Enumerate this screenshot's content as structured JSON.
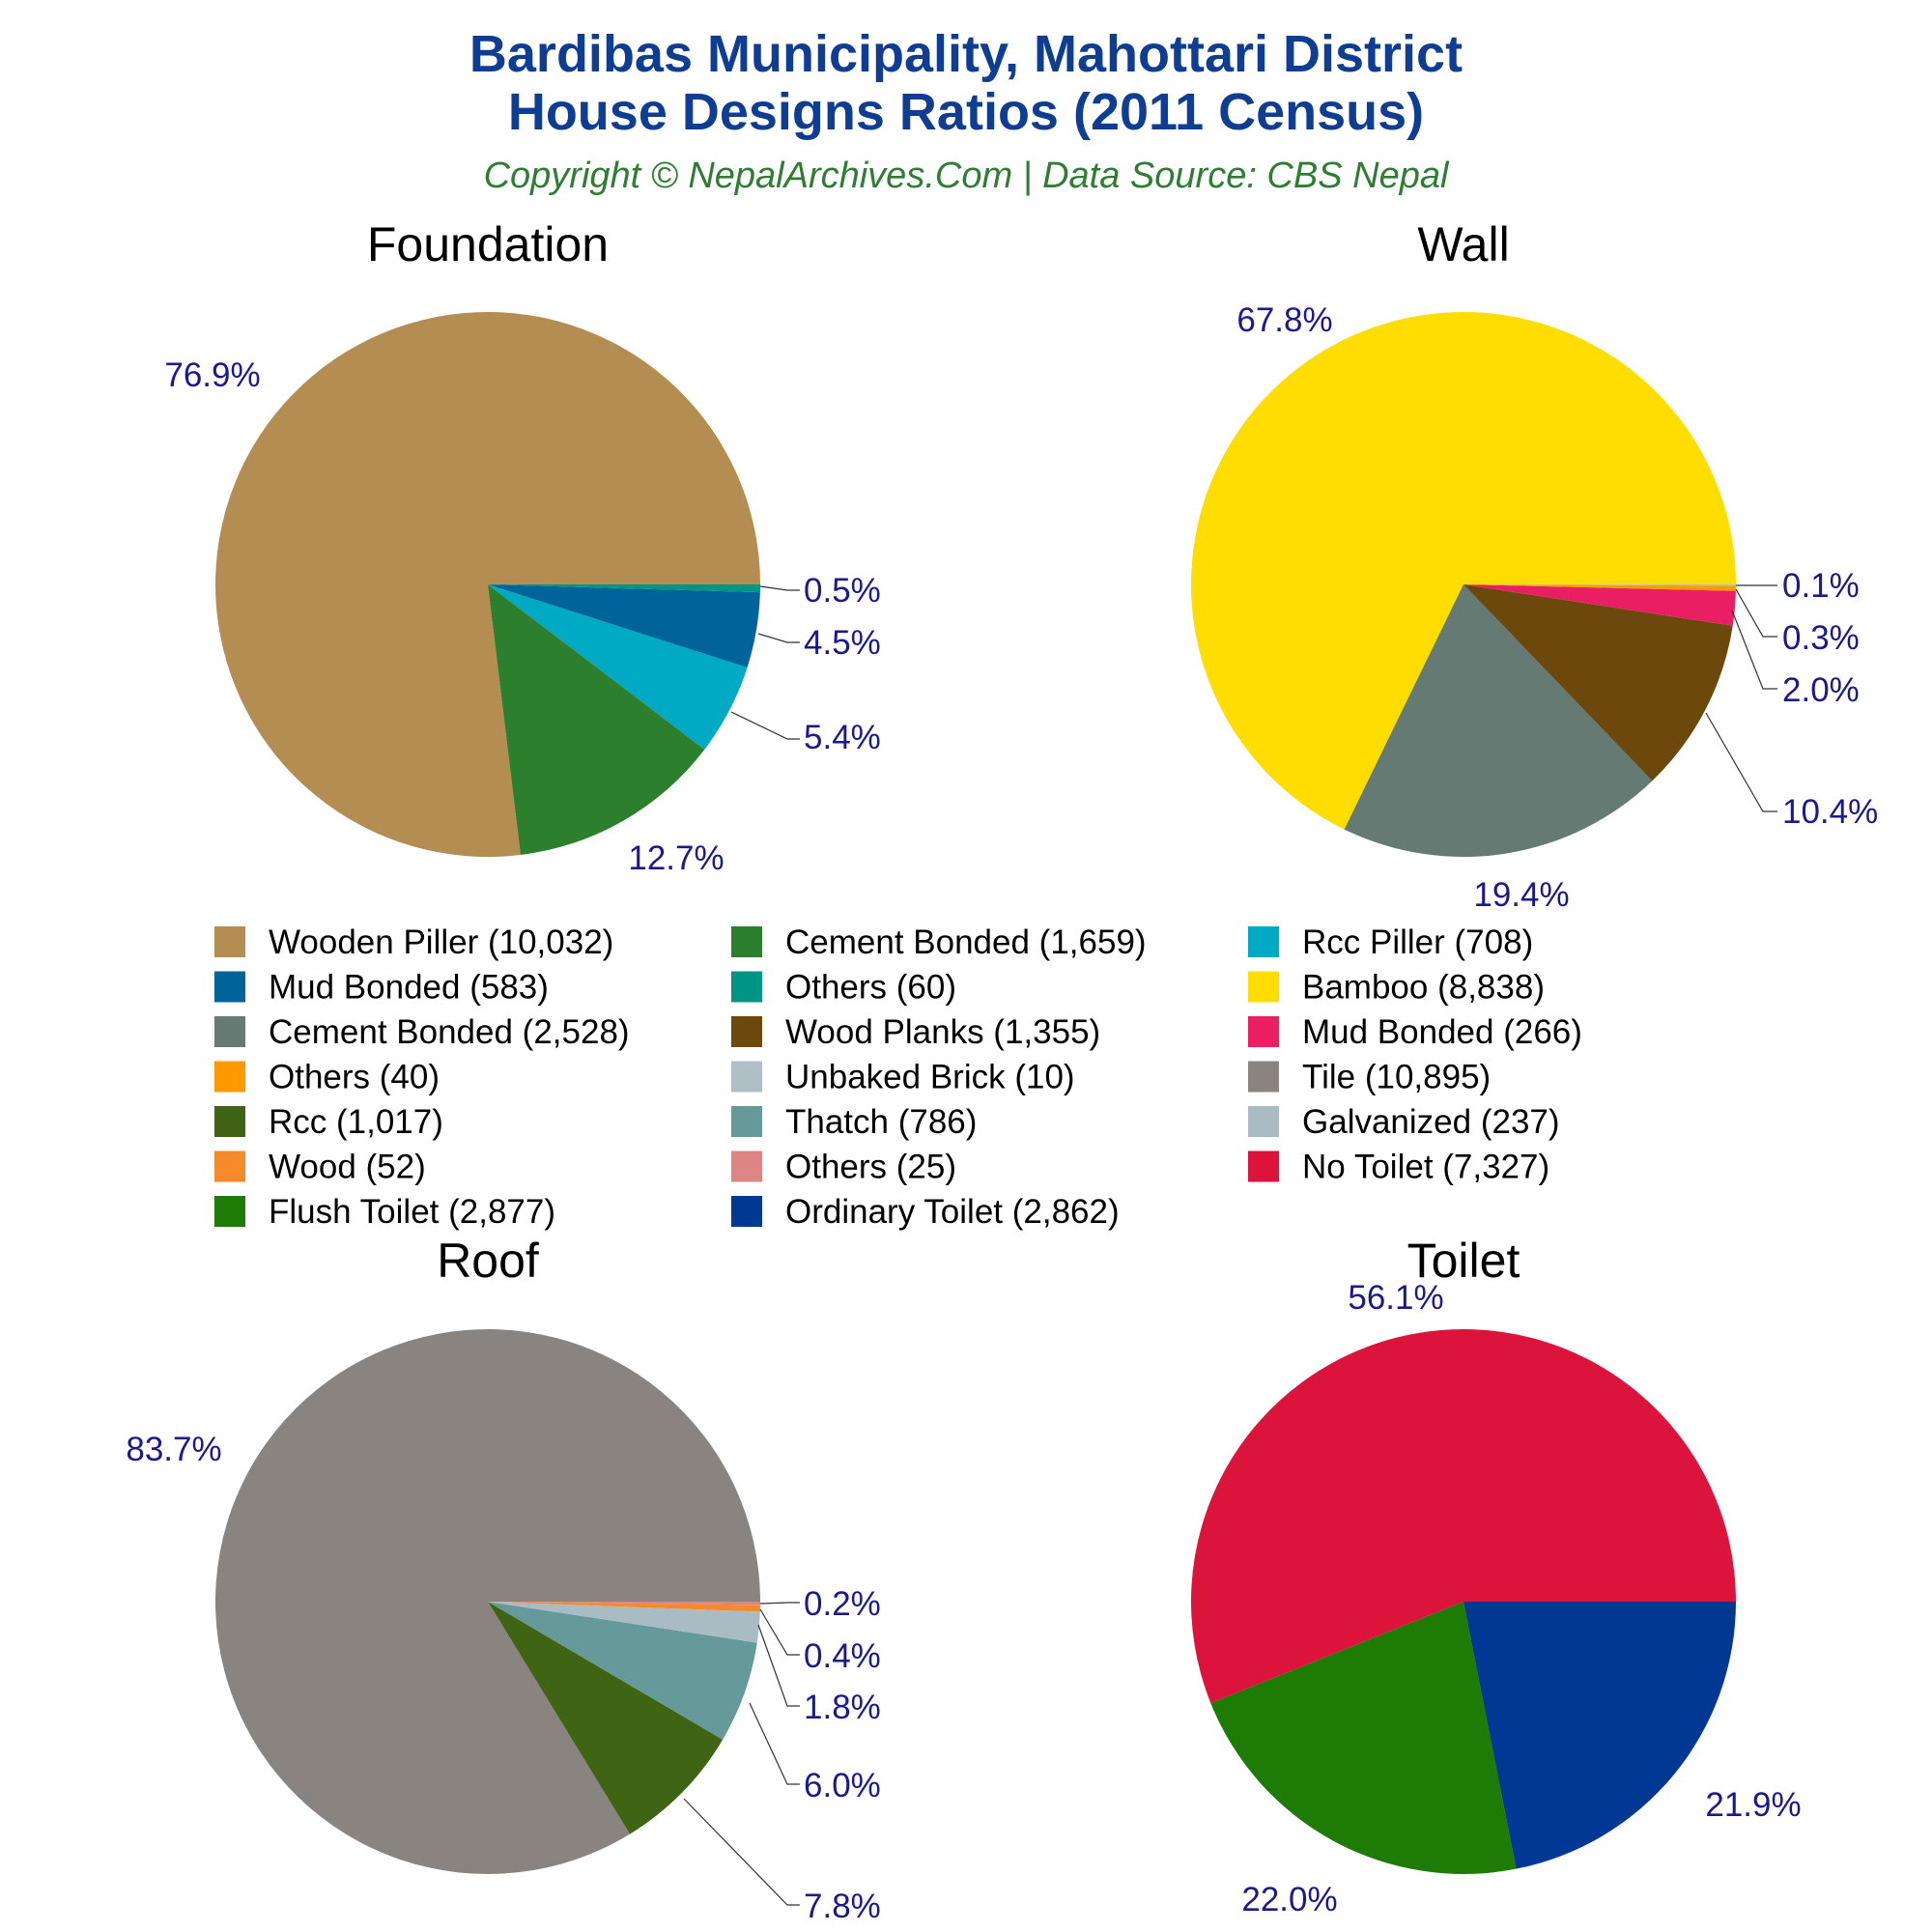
{
  "header": {
    "title_line1": "Bardibas Municipality, Mahottari District",
    "title_line2": "House Designs Ratios (2011 Census)",
    "subtitle": "Copyright © NepalArchives.Com | Data Source: CBS Nepal"
  },
  "chart_data": [
    {
      "type": "pie",
      "title": "Foundation",
      "slices": [
        {
          "label": "Wooden Piller",
          "value": 10032,
          "percent": "76.9%",
          "color": "#b38d51"
        },
        {
          "label": "Cement Bonded",
          "value": 1659,
          "percent": "12.7%",
          "color": "#2c7f2c"
        },
        {
          "label": "Rcc Piller",
          "value": 708,
          "percent": "5.4%",
          "color": "#00a9c4"
        },
        {
          "label": "Mud Bonded",
          "value": 583,
          "percent": "4.5%",
          "color": "#00649a"
        },
        {
          "label": "Others",
          "value": 60,
          "percent": "0.5%",
          "color": "#009485"
        }
      ]
    },
    {
      "type": "pie",
      "title": "Wall",
      "slices": [
        {
          "label": "Bamboo",
          "value": 8838,
          "percent": "67.8%",
          "color": "#ffdd00"
        },
        {
          "label": "Cement Bonded",
          "value": 2528,
          "percent": "19.4%",
          "color": "#657a72"
        },
        {
          "label": "Wood Planks",
          "value": 1355,
          "percent": "10.4%",
          "color": "#6d480c"
        },
        {
          "label": "Mud Bonded",
          "value": 266,
          "percent": "2.0%",
          "color": "#e91e63"
        },
        {
          "label": "Others",
          "value": 40,
          "percent": "0.3%",
          "color": "#ff9900"
        },
        {
          "label": "Unbaked Brick",
          "value": 10,
          "percent": "0.1%",
          "color": "#b0bec5"
        }
      ]
    },
    {
      "type": "pie",
      "title": "Roof",
      "slices": [
        {
          "label": "Tile",
          "value": 10895,
          "percent": "83.7%",
          "color": "#8a8480"
        },
        {
          "label": "Rcc",
          "value": 1017,
          "percent": "7.8%",
          "color": "#3f6514"
        },
        {
          "label": "Thatch",
          "value": 786,
          "percent": "6.0%",
          "color": "#669999"
        },
        {
          "label": "Galvanized",
          "value": 237,
          "percent": "1.8%",
          "color": "#a9bcc4"
        },
        {
          "label": "Wood",
          "value": 52,
          "percent": "0.4%",
          "color": "#f58a2b"
        },
        {
          "label": "Others",
          "value": 25,
          "percent": "0.2%",
          "color": "#dd8585"
        }
      ]
    },
    {
      "type": "pie",
      "title": "Toilet",
      "slices": [
        {
          "label": "No Toilet",
          "value": 7327,
          "percent": "56.1%",
          "color": "#dc143c"
        },
        {
          "label": "Flush Toilet",
          "value": 2877,
          "percent": "22.0%",
          "color": "#1e7b06"
        },
        {
          "label": "Ordinary Toilet",
          "value": 2862,
          "percent": "21.9%",
          "color": "#003893"
        }
      ]
    }
  ],
  "legend": [
    {
      "text": "Wooden Piller (10,032)",
      "color": "#b38d51"
    },
    {
      "text": "Cement Bonded (1,659)",
      "color": "#2c7f2c"
    },
    {
      "text": "Rcc Piller (708)",
      "color": "#00a9c4"
    },
    {
      "text": "Mud Bonded (583)",
      "color": "#00649a"
    },
    {
      "text": "Others (60)",
      "color": "#009485"
    },
    {
      "text": "Bamboo (8,838)",
      "color": "#ffdd00"
    },
    {
      "text": "Cement Bonded (2,528)",
      "color": "#657a72"
    },
    {
      "text": "Wood Planks (1,355)",
      "color": "#6d480c"
    },
    {
      "text": "Mud Bonded (266)",
      "color": "#e91e63"
    },
    {
      "text": "Others (40)",
      "color": "#ff9900"
    },
    {
      "text": "Unbaked Brick (10)",
      "color": "#b0bec5"
    },
    {
      "text": "Tile (10,895)",
      "color": "#8a8480"
    },
    {
      "text": "Rcc (1,017)",
      "color": "#3f6514"
    },
    {
      "text": "Thatch (786)",
      "color": "#669999"
    },
    {
      "text": "Galvanized (237)",
      "color": "#a9bcc4"
    },
    {
      "text": "Wood (52)",
      "color": "#f58a2b"
    },
    {
      "text": "Others (25)",
      "color": "#dd8585"
    },
    {
      "text": "No Toilet (7,327)",
      "color": "#dc143c"
    },
    {
      "text": "Flush Toilet (2,877)",
      "color": "#1e7b06"
    },
    {
      "text": "Ordinary Toilet (2,862)",
      "color": "#003893"
    }
  ]
}
